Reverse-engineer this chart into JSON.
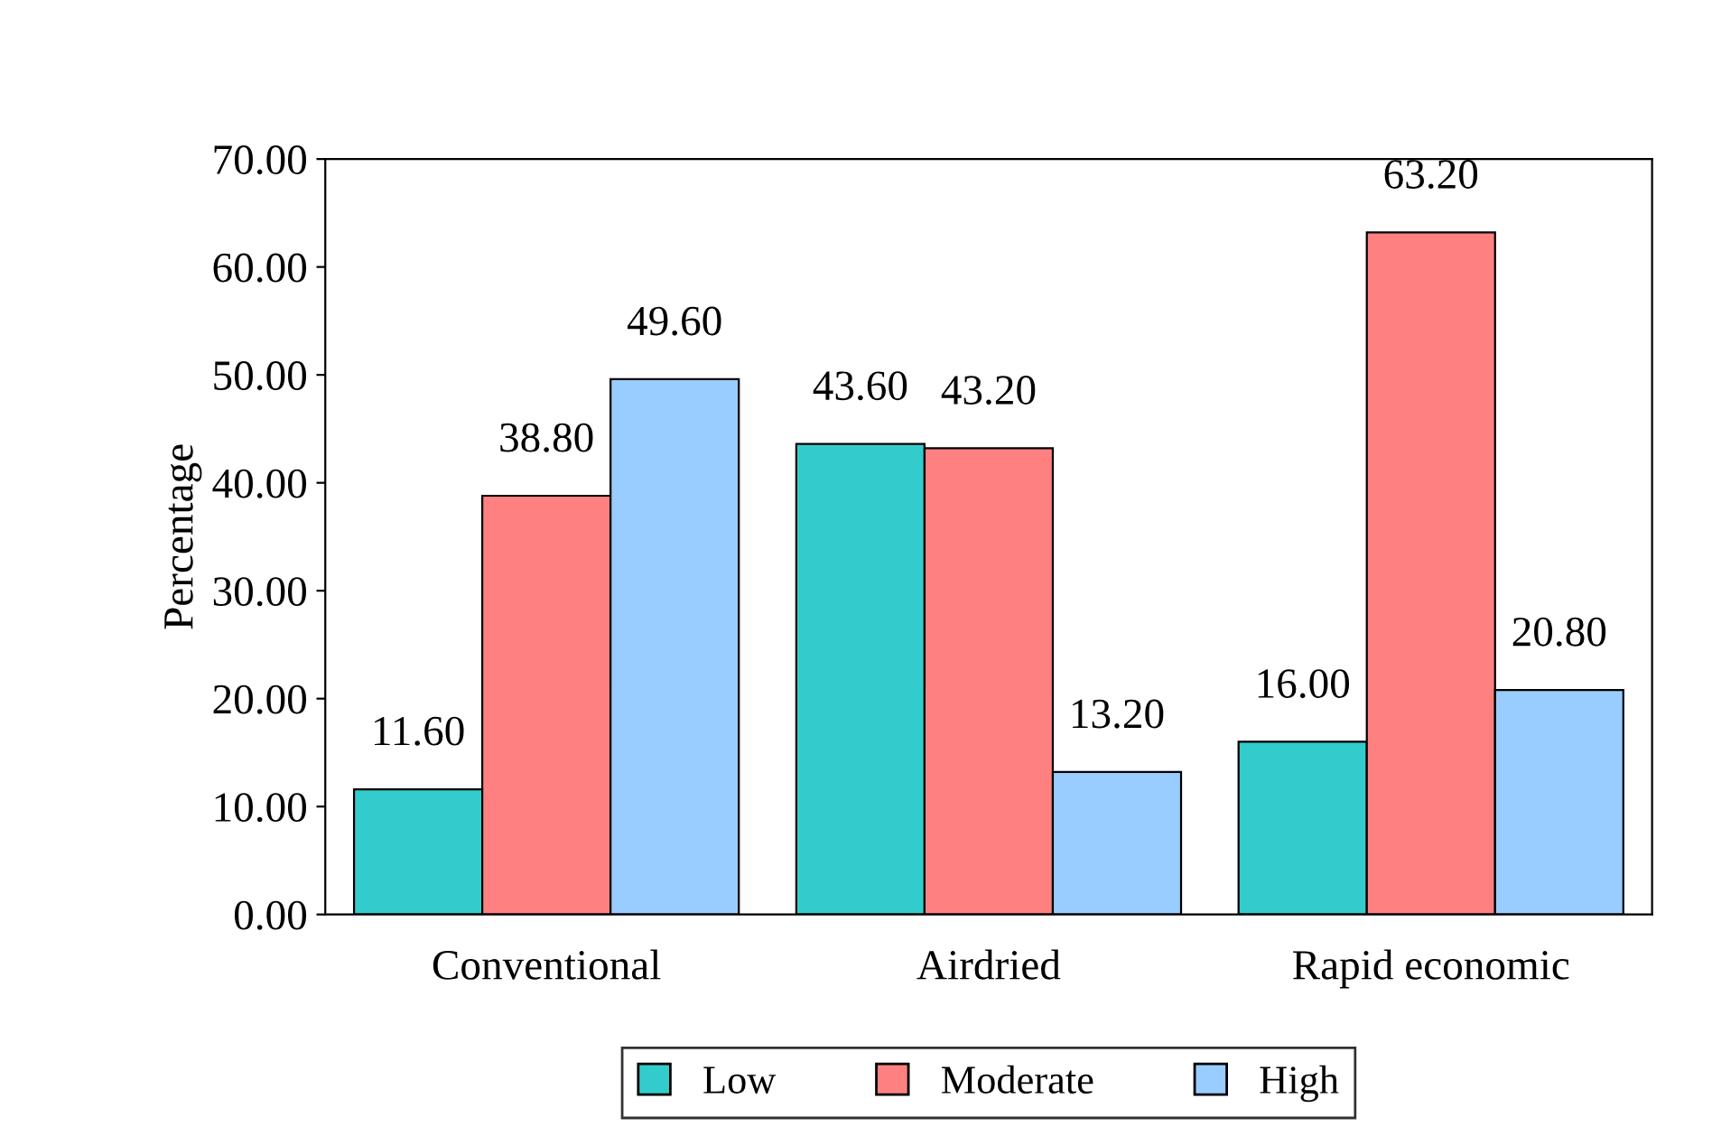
{
  "chart_data": {
    "type": "bar",
    "ylabel": "Percentage",
    "categories": [
      "Conventional",
      "Airdried",
      "Rapid economic"
    ],
    "series": [
      {
        "name": "Low",
        "color": "#33cccc",
        "values": [
          11.6,
          43.6,
          16.0
        ],
        "value_labels": [
          "11.60",
          "43.60",
          "16.00"
        ]
      },
      {
        "name": "Moderate",
        "color": "#ff8080",
        "values": [
          38.8,
          43.2,
          63.2
        ],
        "value_labels": [
          "38.80",
          "43.20",
          "63.20"
        ]
      },
      {
        "name": "High",
        "color": "#99ccff",
        "values": [
          49.6,
          13.2,
          20.8
        ],
        "value_labels": [
          "49.60",
          "13.20",
          "20.80"
        ]
      }
    ],
    "ylim": [
      0,
      70
    ],
    "yticks": [
      {
        "value": 0,
        "label": "0.00"
      },
      {
        "value": 10,
        "label": "10.00"
      },
      {
        "value": 20,
        "label": "20.00"
      },
      {
        "value": 30,
        "label": "30.00"
      },
      {
        "value": 40,
        "label": "40.00"
      },
      {
        "value": 50,
        "label": "50.00"
      },
      {
        "value": 60,
        "label": "60.00"
      },
      {
        "value": 70,
        "label": "70.00"
      }
    ],
    "grid": false,
    "legend": "bottom"
  }
}
